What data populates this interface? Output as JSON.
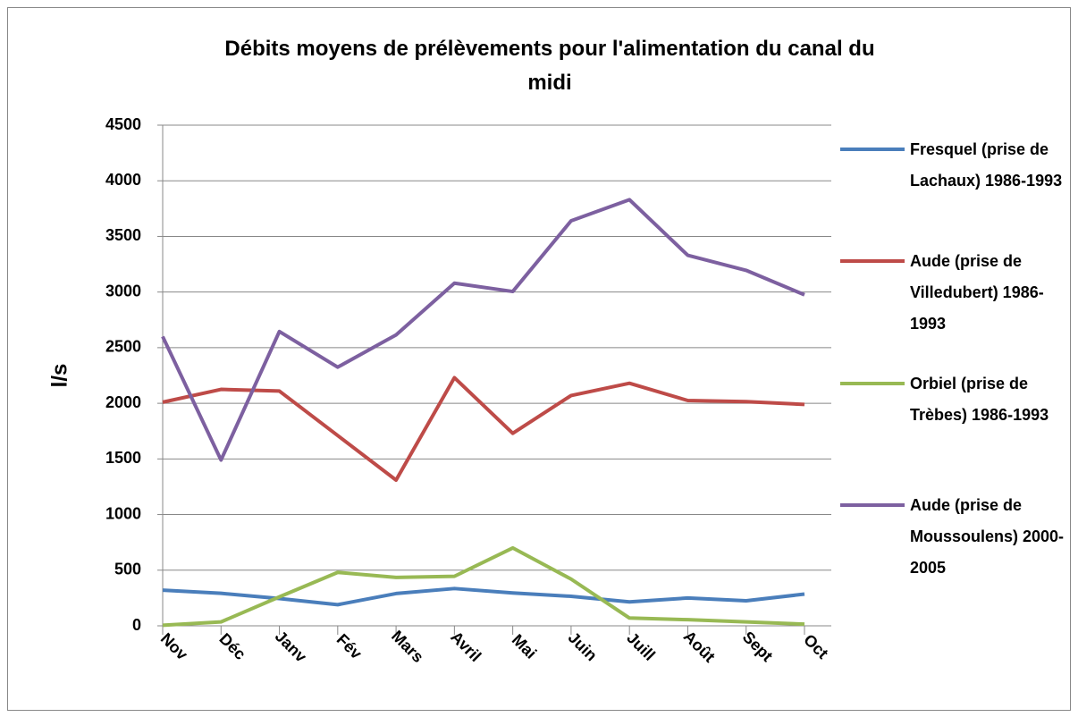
{
  "chart_data": {
    "type": "line",
    "title": "Débits moyens de prélèvements pour l'alimentation du canal du midi",
    "y_label": "l/s",
    "categories": [
      "Nov",
      "Déc",
      "Janv",
      "Fév",
      "Mars",
      "Avril",
      "Mai",
      "Juin",
      "Juill",
      "Août",
      "Sept",
      "Oct"
    ],
    "series": [
      {
        "name": "Fresquel (prise de Lachaux) 1986-1993",
        "color": "#4a7ebb",
        "values": [
          320,
          292,
          245,
          190,
          290,
          335,
          295,
          265,
          215,
          250,
          225,
          285
        ]
      },
      {
        "name": "Aude (prise de Villedubert) 1986-1993",
        "color": "#be4b48",
        "values": [
          2010,
          2125,
          2110,
          1710,
          1310,
          2230,
          1730,
          2070,
          2180,
          2025,
          2015,
          1990
        ]
      },
      {
        "name": "Orbiel (prise de Trèbes) 1986-1993",
        "color": "#98b954",
        "values": [
          5,
          35,
          260,
          480,
          435,
          445,
          700,
          420,
          70,
          55,
          35,
          15
        ]
      },
      {
        "name": "Aude (prise de Moussoulens) 2000-2005",
        "color": "#7d60a0",
        "values": [
          2600,
          1490,
          2645,
          2325,
          2615,
          3080,
          3005,
          3640,
          3830,
          3330,
          3195,
          2975
        ]
      }
    ],
    "ylim": [
      0,
      4500
    ],
    "yticks": [
      0,
      500,
      1000,
      1500,
      2000,
      2500,
      3000,
      3500,
      4000,
      4500
    ],
    "grid": true,
    "legend": "right"
  }
}
